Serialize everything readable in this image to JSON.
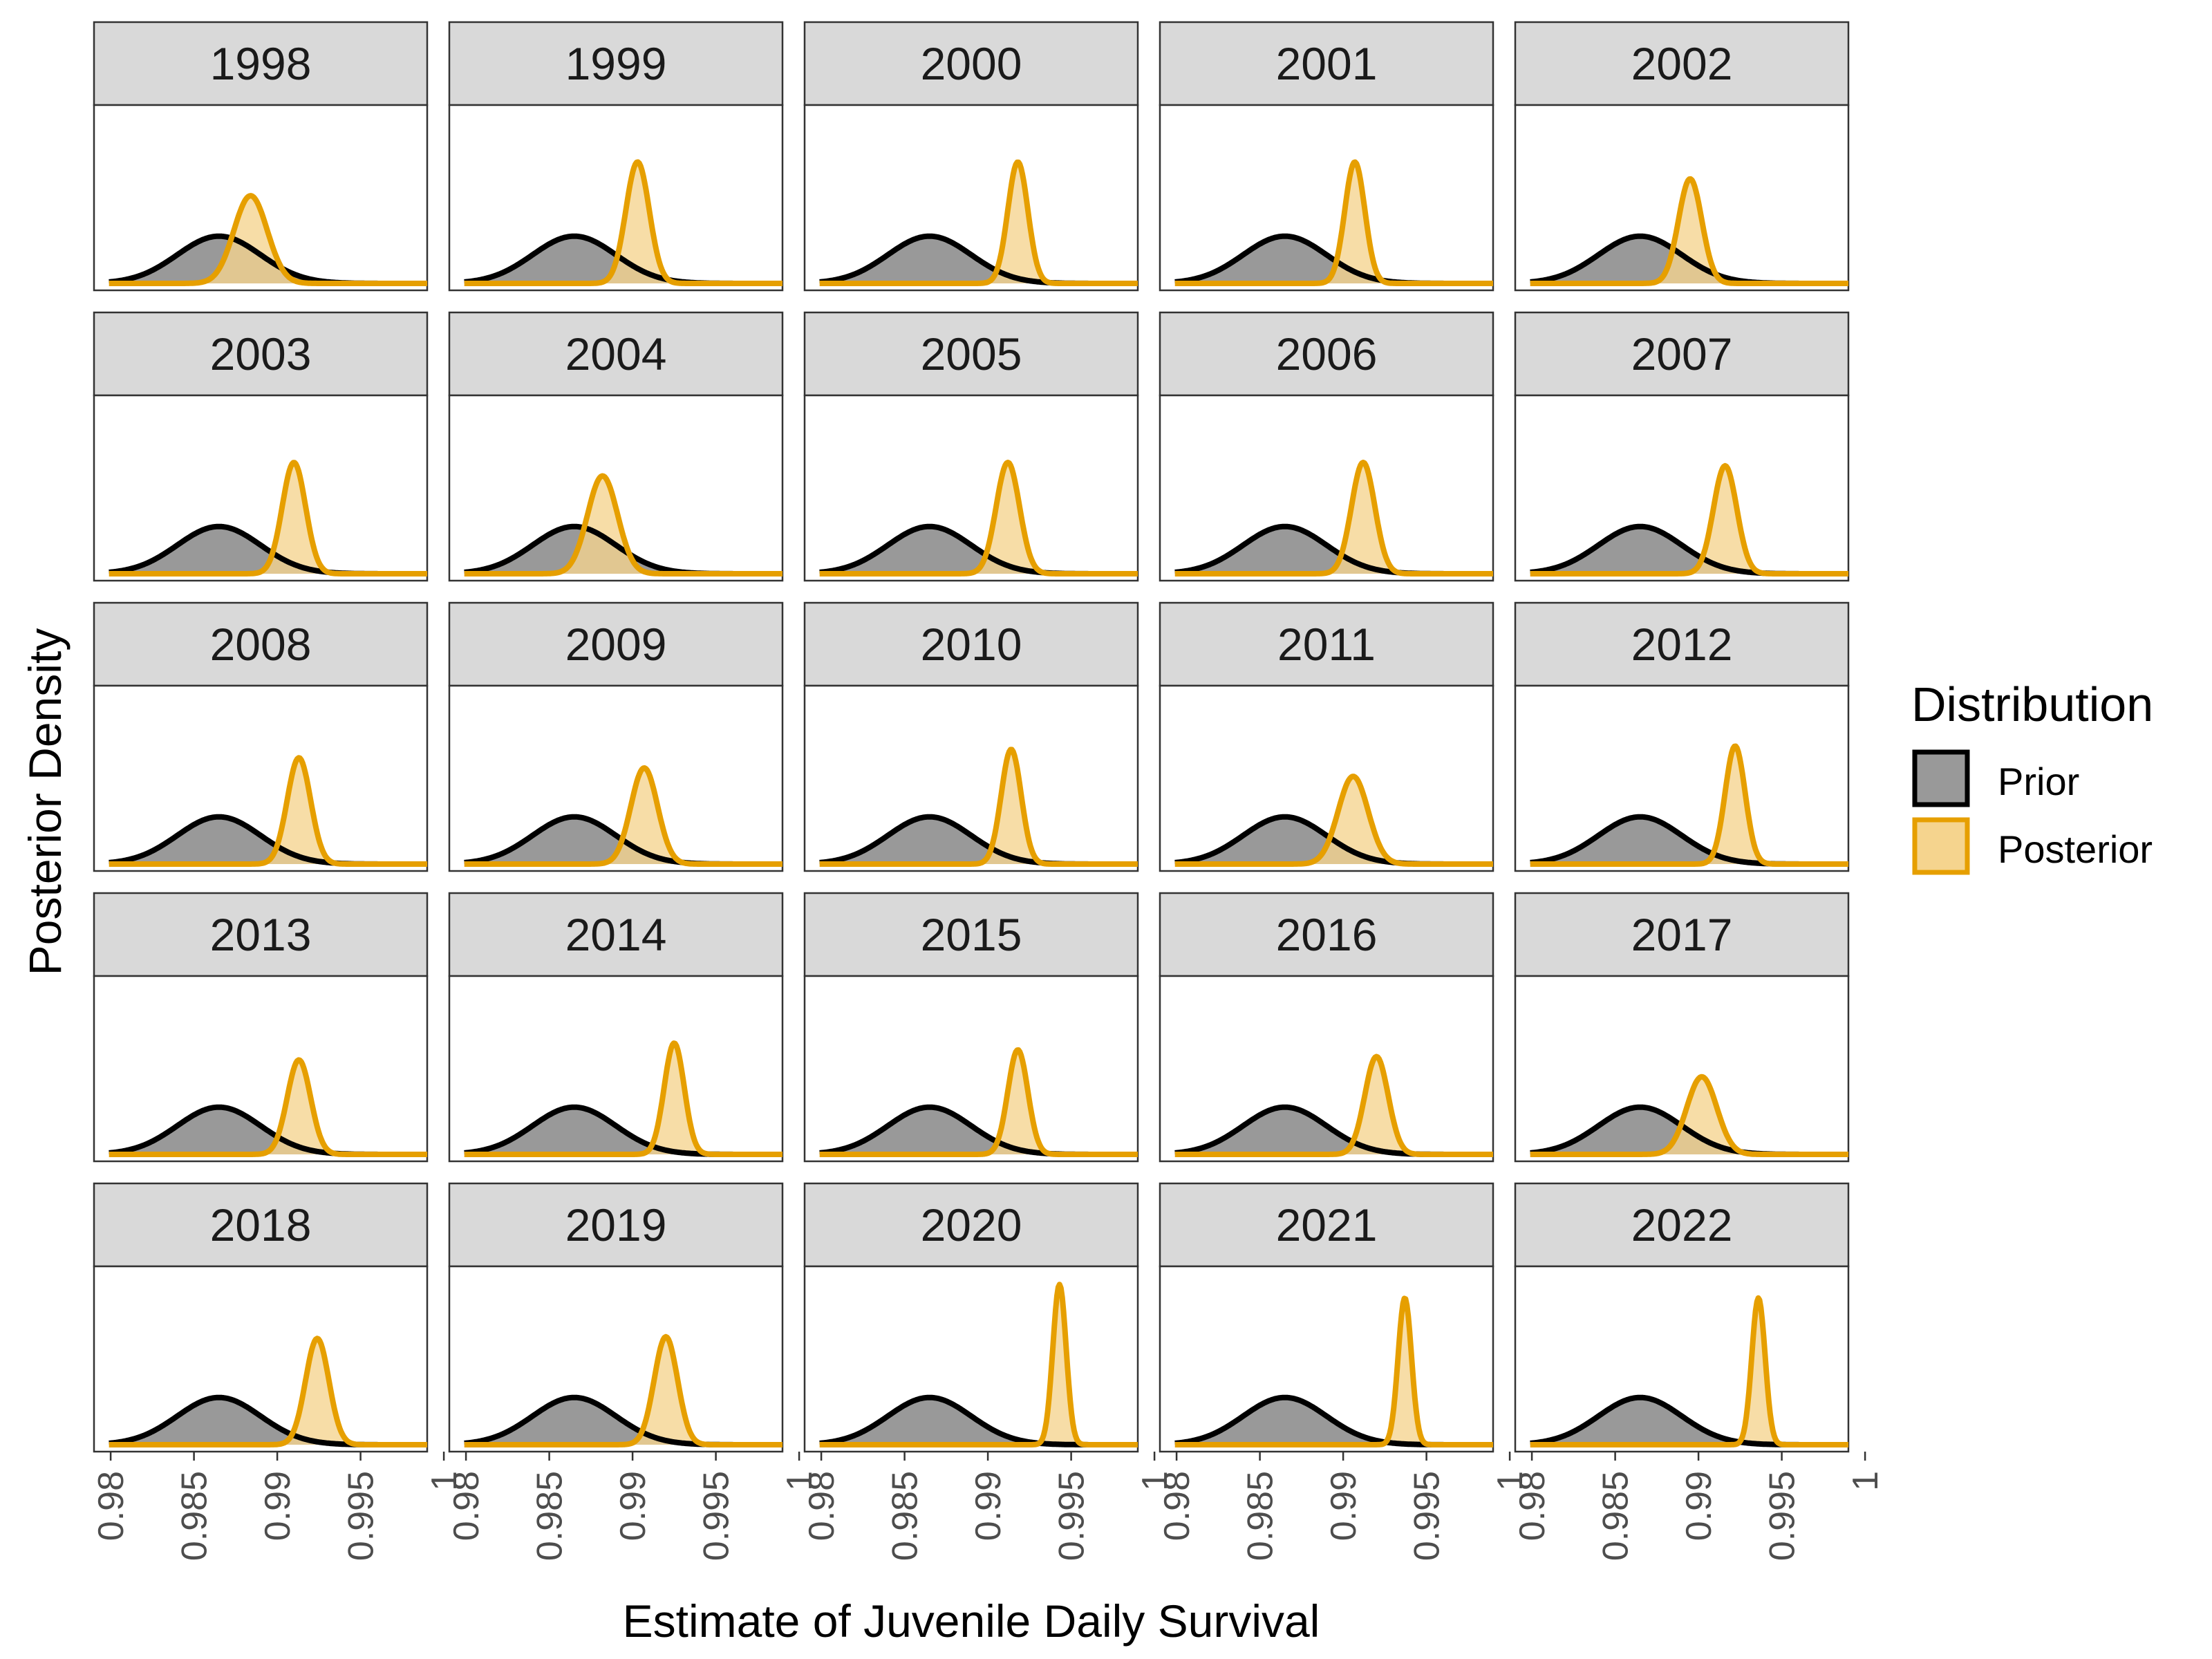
{
  "chart_data": {
    "type": "area",
    "xlabel": "Estimate of Juvenile Daily Survival",
    "ylabel": "Posterior Density",
    "xlim": [
      0.979,
      0.999
    ],
    "x_ticks": [
      0.98,
      0.985,
      0.99,
      0.995,
      1
    ],
    "x_tick_labels": [
      "0.98",
      "0.985",
      "0.99",
      "0.995",
      "1"
    ],
    "grid": false,
    "facet_layout": {
      "rows": 5,
      "cols": 5
    },
    "legend": {
      "title": "Distribution",
      "position": "right",
      "entries": [
        {
          "name": "Prior",
          "fill": "#999999",
          "stroke": "#000000"
        },
        {
          "name": "Posterior",
          "fill": "#F5D48E",
          "stroke": "#E69F00"
        }
      ]
    },
    "prior": {
      "mean": 0.9865,
      "sd": 0.0025
    },
    "panels": [
      {
        "year": "1998",
        "posterior_mean": 0.9884,
        "posterior_sd": 0.001,
        "posterior_peak": 0.52
      },
      {
        "year": "1999",
        "posterior_mean": 0.9903,
        "posterior_sd": 0.0007,
        "posterior_peak": 0.72
      },
      {
        "year": "2000",
        "posterior_mean": 0.9918,
        "posterior_sd": 0.0006,
        "posterior_peak": 0.72
      },
      {
        "year": "2001",
        "posterior_mean": 0.9907,
        "posterior_sd": 0.0006,
        "posterior_peak": 0.72
      },
      {
        "year": "2002",
        "posterior_mean": 0.9895,
        "posterior_sd": 0.0007,
        "posterior_peak": 0.62
      },
      {
        "year": "2003",
        "posterior_mean": 0.991,
        "posterior_sd": 0.0007,
        "posterior_peak": 0.66
      },
      {
        "year": "2004",
        "posterior_mean": 0.9882,
        "posterior_sd": 0.0009,
        "posterior_peak": 0.58
      },
      {
        "year": "2005",
        "posterior_mean": 0.9912,
        "posterior_sd": 0.0007,
        "posterior_peak": 0.66
      },
      {
        "year": "2006",
        "posterior_mean": 0.9912,
        "posterior_sd": 0.0007,
        "posterior_peak": 0.66
      },
      {
        "year": "2007",
        "posterior_mean": 0.9916,
        "posterior_sd": 0.0007,
        "posterior_peak": 0.64
      },
      {
        "year": "2008",
        "posterior_mean": 0.9913,
        "posterior_sd": 0.0007,
        "posterior_peak": 0.63
      },
      {
        "year": "2009",
        "posterior_mean": 0.9907,
        "posterior_sd": 0.0008,
        "posterior_peak": 0.57
      },
      {
        "year": "2010",
        "posterior_mean": 0.9914,
        "posterior_sd": 0.0006,
        "posterior_peak": 0.68
      },
      {
        "year": "2011",
        "posterior_mean": 0.9906,
        "posterior_sd": 0.0009,
        "posterior_peak": 0.52
      },
      {
        "year": "2012",
        "posterior_mean": 0.9922,
        "posterior_sd": 0.0006,
        "posterior_peak": 0.7
      },
      {
        "year": "2013",
        "posterior_mean": 0.9913,
        "posterior_sd": 0.0007,
        "posterior_peak": 0.56
      },
      {
        "year": "2014",
        "posterior_mean": 0.9925,
        "posterior_sd": 0.0006,
        "posterior_peak": 0.66
      },
      {
        "year": "2015",
        "posterior_mean": 0.9918,
        "posterior_sd": 0.0006,
        "posterior_peak": 0.62
      },
      {
        "year": "2016",
        "posterior_mean": 0.992,
        "posterior_sd": 0.0007,
        "posterior_peak": 0.58
      },
      {
        "year": "2017",
        "posterior_mean": 0.9902,
        "posterior_sd": 0.0009,
        "posterior_peak": 0.46
      },
      {
        "year": "2018",
        "posterior_mean": 0.9924,
        "posterior_sd": 0.0007,
        "posterior_peak": 0.63
      },
      {
        "year": "2019",
        "posterior_mean": 0.992,
        "posterior_sd": 0.0007,
        "posterior_peak": 0.64
      },
      {
        "year": "2020",
        "posterior_mean": 0.9943,
        "posterior_sd": 0.0004,
        "posterior_peak": 0.95
      },
      {
        "year": "2021",
        "posterior_mean": 0.9937,
        "posterior_sd": 0.0004,
        "posterior_peak": 0.87
      },
      {
        "year": "2022",
        "posterior_mean": 0.9936,
        "posterior_sd": 0.0004,
        "posterior_peak": 0.87
      }
    ]
  }
}
